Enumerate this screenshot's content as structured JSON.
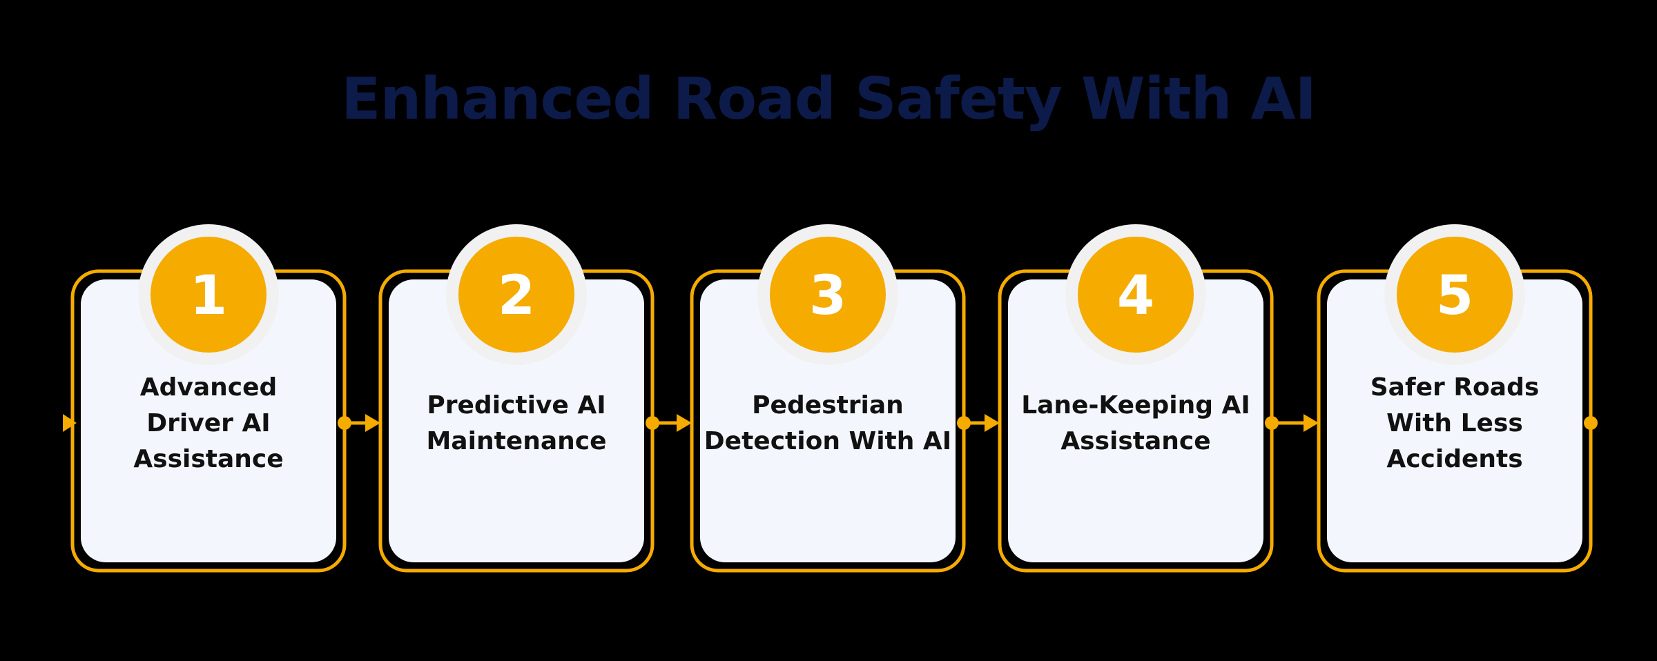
{
  "title": "Enhanced Road Safety With AI",
  "colors": {
    "accent": "#f5ab00",
    "card_fill": "#f3f7fd",
    "badge_ring": "#f1f1f1",
    "title": "#0d1b4a",
    "text": "#111111",
    "background": "#000000"
  },
  "steps": [
    {
      "number": "1",
      "lines": [
        "Advanced",
        "Driver AI",
        "Assistance"
      ]
    },
    {
      "number": "2",
      "lines": [
        "Predictive AI",
        "Maintenance"
      ]
    },
    {
      "number": "3",
      "lines": [
        "Pedestrian",
        "Detection  With AI"
      ]
    },
    {
      "number": "4",
      "lines": [
        "Lane-Keeping  AI",
        "Assistance"
      ]
    },
    {
      "number": "5",
      "lines": [
        "Safer Roads",
        "With Less",
        "Accidents"
      ]
    }
  ]
}
